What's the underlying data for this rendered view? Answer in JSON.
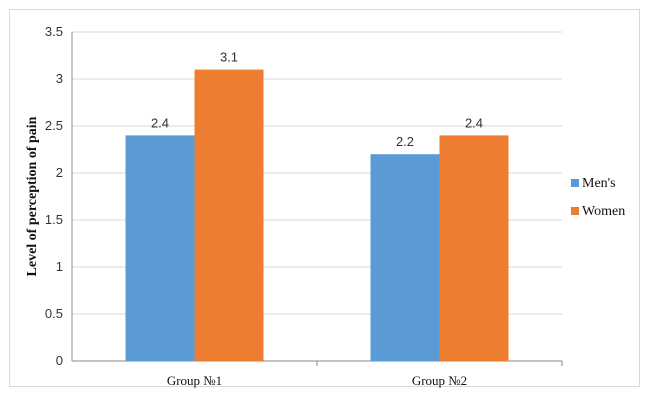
{
  "chart_data": {
    "type": "bar",
    "title": "",
    "xlabel": "",
    "ylabel": "Level of perception of pain",
    "categories": [
      "Group №1",
      "Group №2"
    ],
    "series": [
      {
        "name": "Men's",
        "values": [
          2.4,
          2.2
        ],
        "color": "#5b9bd5"
      },
      {
        "name": "Women",
        "values": [
          3.1,
          2.4
        ],
        "color": "#ed7d31"
      }
    ],
    "ylim": [
      0,
      3.5
    ],
    "yticks": [
      0,
      0.5,
      1,
      1.5,
      2,
      2.5,
      3,
      3.5
    ],
    "data_labels": true,
    "grid": true,
    "legend_position": "right"
  }
}
